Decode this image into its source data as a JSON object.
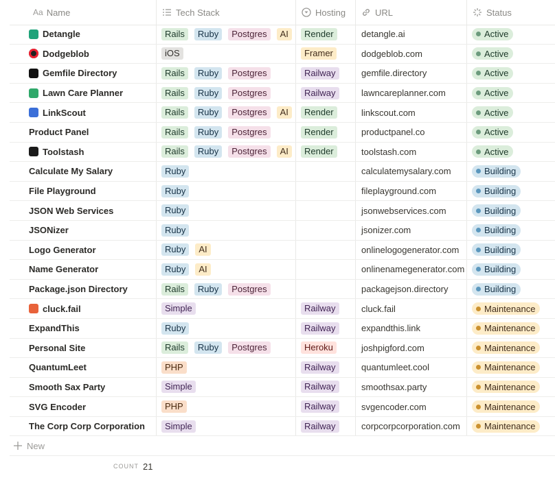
{
  "header": {
    "name_icon": "Aa",
    "columns": [
      "Name",
      "Tech Stack",
      "Hosting",
      "URL",
      "Status"
    ]
  },
  "rows": [
    {
      "name": "Detangle",
      "tech": [
        {
          "text": "Rails",
          "color": "green"
        },
        {
          "text": "Ruby",
          "color": "blue"
        },
        {
          "text": "Postgres",
          "color": "pink"
        },
        {
          "text": "AI",
          "color": "yellow"
        }
      ],
      "hosting": {
        "text": "Render",
        "color": "green"
      },
      "url": "detangle.ai",
      "status": {
        "text": "Active",
        "color": "green"
      }
    },
    {
      "name": "Dodgeblob",
      "tech": [
        {
          "text": "iOS",
          "color": "gray"
        }
      ],
      "hosting": {
        "text": "Framer",
        "color": "yellow"
      },
      "url": "dodgeblob.com",
      "status": {
        "text": "Active",
        "color": "green"
      }
    },
    {
      "name": "Gemfile Directory",
      "tech": [
        {
          "text": "Rails",
          "color": "green"
        },
        {
          "text": "Ruby",
          "color": "blue"
        },
        {
          "text": "Postgres",
          "color": "pink"
        }
      ],
      "hosting": {
        "text": "Railway",
        "color": "purple"
      },
      "url": "gemfile.directory",
      "status": {
        "text": "Active",
        "color": "green"
      }
    },
    {
      "name": "Lawn Care Planner",
      "tech": [
        {
          "text": "Rails",
          "color": "green"
        },
        {
          "text": "Ruby",
          "color": "blue"
        },
        {
          "text": "Postgres",
          "color": "pink"
        }
      ],
      "hosting": {
        "text": "Railway",
        "color": "purple"
      },
      "url": "lawncareplanner.com",
      "status": {
        "text": "Active",
        "color": "green"
      }
    },
    {
      "name": "LinkScout",
      "tech": [
        {
          "text": "Rails",
          "color": "green"
        },
        {
          "text": "Ruby",
          "color": "blue"
        },
        {
          "text": "Postgres",
          "color": "pink"
        },
        {
          "text": "AI",
          "color": "yellow"
        }
      ],
      "hosting": {
        "text": "Render",
        "color": "green"
      },
      "url": "linkscout.com",
      "status": {
        "text": "Active",
        "color": "green"
      }
    },
    {
      "name": "Product Panel",
      "tech": [
        {
          "text": "Rails",
          "color": "green"
        },
        {
          "text": "Ruby",
          "color": "blue"
        },
        {
          "text": "Postgres",
          "color": "pink"
        }
      ],
      "hosting": {
        "text": "Render",
        "color": "green"
      },
      "url": "productpanel.co",
      "status": {
        "text": "Active",
        "color": "green"
      }
    },
    {
      "name": "Toolstash",
      "tech": [
        {
          "text": "Rails",
          "color": "green"
        },
        {
          "text": "Ruby",
          "color": "blue"
        },
        {
          "text": "Postgres",
          "color": "pink"
        },
        {
          "text": "AI",
          "color": "yellow"
        }
      ],
      "hosting": {
        "text": "Render",
        "color": "green"
      },
      "url": "toolstash.com",
      "status": {
        "text": "Active",
        "color": "green"
      }
    },
    {
      "name": "Calculate My Salary",
      "tech": [
        {
          "text": "Ruby",
          "color": "blue"
        }
      ],
      "hosting": null,
      "url": "calculatemysalary.com",
      "status": {
        "text": "Building",
        "color": "blue"
      }
    },
    {
      "name": "File Playground",
      "tech": [
        {
          "text": "Ruby",
          "color": "blue"
        }
      ],
      "hosting": null,
      "url": "fileplayground.com",
      "status": {
        "text": "Building",
        "color": "blue"
      }
    },
    {
      "name": "JSON Web Services",
      "tech": [
        {
          "text": "Ruby",
          "color": "blue"
        }
      ],
      "hosting": null,
      "url": "jsonwebservices.com",
      "status": {
        "text": "Building",
        "color": "blue"
      }
    },
    {
      "name": "JSONizer",
      "tech": [
        {
          "text": "Ruby",
          "color": "blue"
        }
      ],
      "hosting": null,
      "url": "jsonizer.com",
      "status": {
        "text": "Building",
        "color": "blue"
      }
    },
    {
      "name": "Logo Generator",
      "tech": [
        {
          "text": "Ruby",
          "color": "blue"
        },
        {
          "text": "AI",
          "color": "yellow"
        }
      ],
      "hosting": null,
      "url": "onlinelogogenerator.com",
      "status": {
        "text": "Building",
        "color": "blue"
      }
    },
    {
      "name": "Name Generator",
      "tech": [
        {
          "text": "Ruby",
          "color": "blue"
        },
        {
          "text": "AI",
          "color": "yellow"
        }
      ],
      "hosting": null,
      "url": "onlinenamegenerator.com",
      "status": {
        "text": "Building",
        "color": "blue"
      }
    },
    {
      "name": "Package.json Directory",
      "tech": [
        {
          "text": "Rails",
          "color": "green"
        },
        {
          "text": "Ruby",
          "color": "blue"
        },
        {
          "text": "Postgres",
          "color": "pink"
        }
      ],
      "hosting": null,
      "url": "packagejson.directory",
      "status": {
        "text": "Building",
        "color": "blue"
      }
    },
    {
      "name": "cluck.fail",
      "tech": [
        {
          "text": "Simple",
          "color": "purple"
        }
      ],
      "hosting": {
        "text": "Railway",
        "color": "purple"
      },
      "url": "cluck.fail",
      "status": {
        "text": "Maintenance",
        "color": "yellow"
      }
    },
    {
      "name": "ExpandThis",
      "tech": [
        {
          "text": "Ruby",
          "color": "blue"
        }
      ],
      "hosting": {
        "text": "Railway",
        "color": "purple"
      },
      "url": "expandthis.link",
      "status": {
        "text": "Maintenance",
        "color": "yellow"
      }
    },
    {
      "name": "Personal Site",
      "tech": [
        {
          "text": "Rails",
          "color": "green"
        },
        {
          "text": "Ruby",
          "color": "blue"
        },
        {
          "text": "Postgres",
          "color": "pink"
        }
      ],
      "hosting": {
        "text": "Heroku",
        "color": "red"
      },
      "url": "joshpigford.com",
      "status": {
        "text": "Maintenance",
        "color": "yellow"
      }
    },
    {
      "name": "QuantumLeet",
      "tech": [
        {
          "text": "PHP",
          "color": "orange"
        }
      ],
      "hosting": {
        "text": "Railway",
        "color": "purple"
      },
      "url": "quantumleet.cool",
      "status": {
        "text": "Maintenance",
        "color": "yellow"
      }
    },
    {
      "name": "Smooth Sax Party",
      "tech": [
        {
          "text": "Simple",
          "color": "purple"
        }
      ],
      "hosting": {
        "text": "Railway",
        "color": "purple"
      },
      "url": "smoothsax.party",
      "status": {
        "text": "Maintenance",
        "color": "yellow"
      }
    },
    {
      "name": "SVG Encoder",
      "tech": [
        {
          "text": "PHP",
          "color": "orange"
        }
      ],
      "hosting": {
        "text": "Railway",
        "color": "purple"
      },
      "url": "svgencoder.com",
      "status": {
        "text": "Maintenance",
        "color": "yellow"
      }
    },
    {
      "name": "The Corp Corp Corporation",
      "tech": [
        {
          "text": "Simple",
          "color": "purple"
        }
      ],
      "hosting": {
        "text": "Railway",
        "color": "purple"
      },
      "url": "corpcorpcorporation.com",
      "status": {
        "text": "Maintenance",
        "color": "yellow"
      }
    }
  ],
  "footer": {
    "new_label": "New",
    "count_label": "COUNT",
    "count": 21
  }
}
